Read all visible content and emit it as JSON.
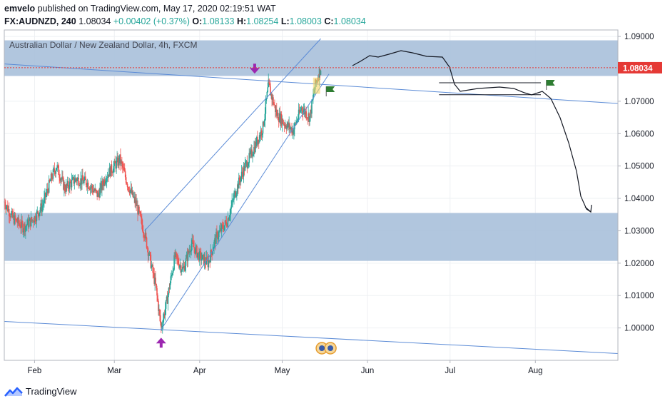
{
  "header": {
    "author": "emvelo",
    "published_text": "published on TradingView.com, May 17, 2020 02:19:51 WAT"
  },
  "ohlc": {
    "symbol": "FX:AUDNZD, 240",
    "last": "1.08034",
    "change": "+0.00402 (+0.37%)",
    "o_label": "O:",
    "o": "1.08133",
    "h_label": "H:",
    "h": "1.08254",
    "l_label": "L:",
    "l": "1.08003",
    "c_label": "C:",
    "c": "1.08034"
  },
  "footer": {
    "brand": "TradingView"
  },
  "colors": {
    "up": "#26a69a",
    "down": "#ef5350",
    "zone": "#a8c0da",
    "trendline": "#5b8bd6",
    "price_tag": "#e53935",
    "arrow": "#9c27b0",
    "flag": "#2e7d32"
  },
  "chart_data": {
    "type": "candlestick",
    "title": "Australian Dollar / New Zealand Dollar, 4h, FXCM",
    "ylim": [
      0.99,
      1.092
    ],
    "y_ticks": [
      1.0,
      1.01,
      1.02,
      1.03,
      1.04,
      1.05,
      1.06,
      1.07,
      1.08,
      1.09
    ],
    "y_tick_labels": [
      "1.00000",
      "1.01000",
      "1.02000",
      "1.03000",
      "1.04000",
      "1.05000",
      "1.06000",
      "1.07000",
      "1.08000",
      "1.09000"
    ],
    "x_range": [
      "2020-01-21",
      "2020-08-31"
    ],
    "x_ticks": [
      {
        "date": "2020-02-01",
        "label": "Feb"
      },
      {
        "date": "2020-03-01",
        "label": "Mar"
      },
      {
        "date": "2020-04-01",
        "label": "Apr"
      },
      {
        "date": "2020-05-01",
        "label": "May"
      },
      {
        "date": "2020-06-01",
        "label": "Jun"
      },
      {
        "date": "2020-07-01",
        "label": "Jul"
      },
      {
        "date": "2020-08-01",
        "label": "Aug"
      }
    ],
    "last_price": 1.08034,
    "last_price_label": "1.08034",
    "price_path": [
      [
        "2020-01-21",
        1.039
      ],
      [
        "2020-01-24",
        1.034
      ],
      [
        "2020-01-28",
        1.031
      ],
      [
        "2020-02-01",
        1.034
      ],
      [
        "2020-02-04",
        1.038
      ],
      [
        "2020-02-07",
        1.046
      ],
      [
        "2020-02-09",
        1.05
      ],
      [
        "2020-02-12",
        1.043
      ],
      [
        "2020-02-16",
        1.046
      ],
      [
        "2020-02-20",
        1.045
      ],
      [
        "2020-02-24",
        1.041
      ],
      [
        "2020-02-27",
        1.047
      ],
      [
        "2020-03-03",
        1.052
      ],
      [
        "2020-03-06",
        1.044
      ],
      [
        "2020-03-09",
        1.038
      ],
      [
        "2020-03-12",
        1.029
      ],
      [
        "2020-03-16",
        1.013
      ],
      [
        "2020-03-18",
        1.0
      ],
      [
        "2020-03-20",
        1.008
      ],
      [
        "2020-03-23",
        1.022
      ],
      [
        "2020-03-26",
        1.018
      ],
      [
        "2020-03-29",
        1.026
      ],
      [
        "2020-04-01",
        1.022
      ],
      [
        "2020-04-04",
        1.02
      ],
      [
        "2020-04-07",
        1.028
      ],
      [
        "2020-04-11",
        1.033
      ],
      [
        "2020-04-14",
        1.042
      ],
      [
        "2020-04-17",
        1.049
      ],
      [
        "2020-04-20",
        1.054
      ],
      [
        "2020-04-24",
        1.062
      ],
      [
        "2020-04-26",
        1.075
      ],
      [
        "2020-04-29",
        1.066
      ],
      [
        "2020-05-02",
        1.063
      ],
      [
        "2020-05-05",
        1.061
      ],
      [
        "2020-05-08",
        1.068
      ],
      [
        "2020-05-11",
        1.065
      ],
      [
        "2020-05-13",
        1.075
      ],
      [
        "2020-05-15",
        1.08034
      ]
    ],
    "zones": [
      {
        "from": 1.0778,
        "to": 1.0888
      },
      {
        "from": 1.0207,
        "to": 1.0355
      }
    ],
    "trendlines": [
      {
        "from": [
          "2020-01-21",
          1.0815
        ],
        "to": [
          "2020-08-31",
          1.0693
        ]
      },
      {
        "from": [
          "2020-01-21",
          1.002
        ],
        "to": [
          "2020-08-31",
          0.9921
        ]
      },
      {
        "from": [
          "2020-03-12",
          1.03
        ],
        "to": [
          "2020-05-15",
          1.0893
        ]
      },
      {
        "from": [
          "2020-03-18",
          0.9995
        ],
        "to": [
          "2020-05-18",
          1.0784
        ]
      }
    ],
    "annotations": [
      {
        "type": "arrow-down",
        "date": "2020-04-21",
        "price": 1.0785
      },
      {
        "type": "arrow-up",
        "date": "2020-03-18",
        "price": 0.997
      },
      {
        "type": "flag",
        "date": "2020-05-17",
        "price": 1.0715
      },
      {
        "type": "flag",
        "date": "2020-08-05",
        "price": 1.0735
      },
      {
        "type": "rect",
        "from": [
          "2020-06-27",
          1.072
        ],
        "to": [
          "2020-08-03",
          1.0757
        ]
      }
    ],
    "legend": "top-left"
  }
}
